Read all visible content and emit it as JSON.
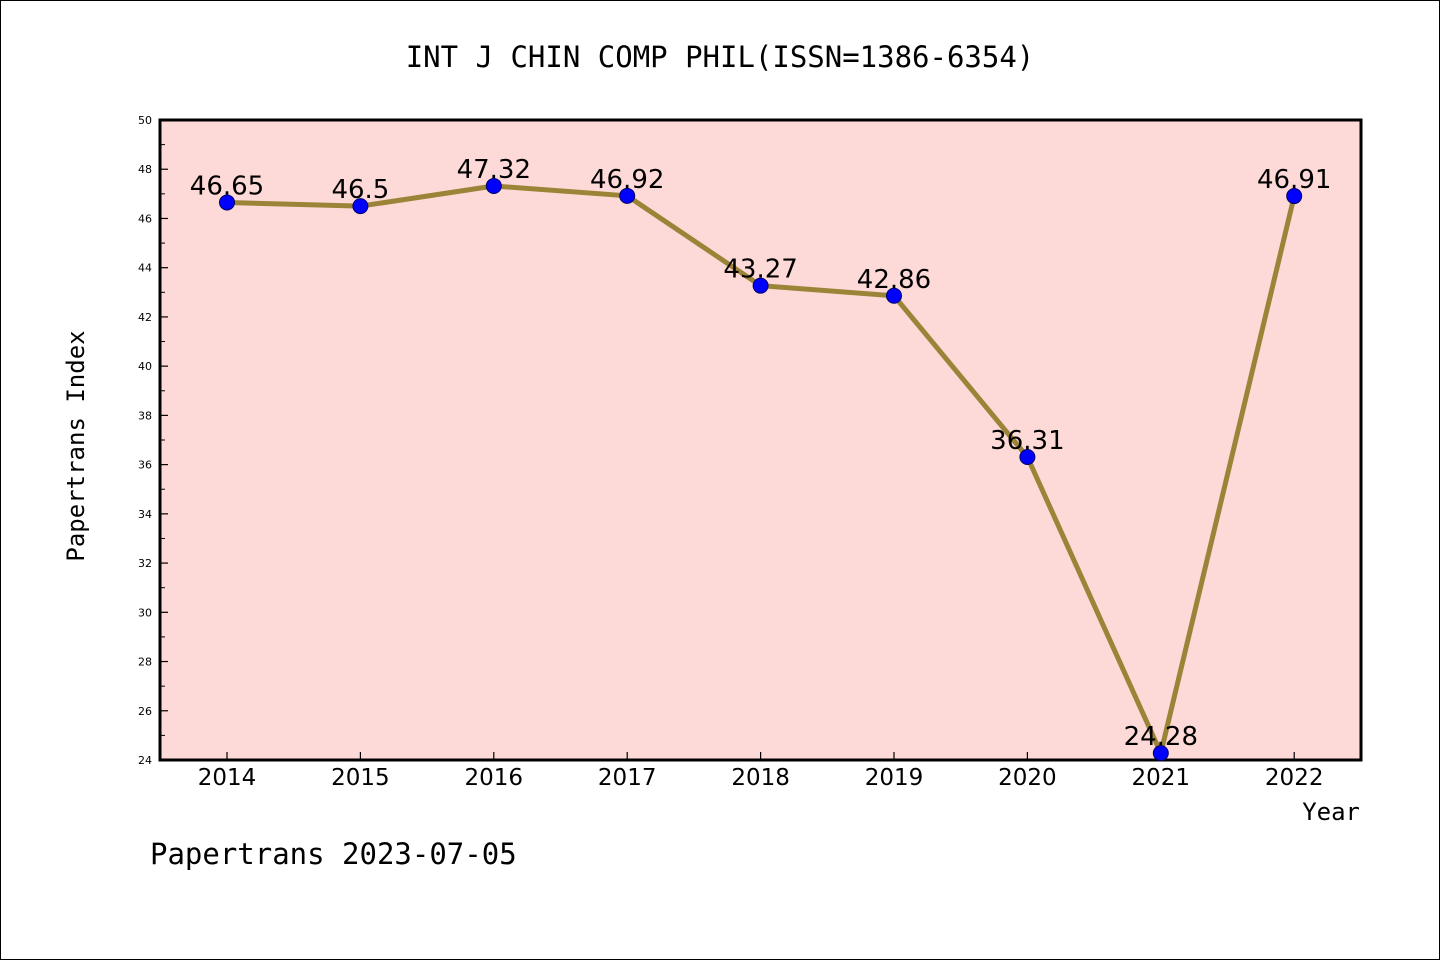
{
  "chart_data": {
    "type": "line",
    "title": "INT J CHIN COMP PHIL(ISSN=1386-6354)",
    "xlabel": "Year",
    "ylabel": "Papertrans Index",
    "categories": [
      "2014",
      "2015",
      "2016",
      "2017",
      "2018",
      "2019",
      "2020",
      "2021",
      "2022"
    ],
    "series": [
      {
        "values": [
          46.65,
          46.5,
          47.32,
          46.92,
          43.27,
          42.86,
          36.31,
          24.28,
          46.91
        ]
      }
    ],
    "data_labels": [
      "46.65",
      "46.5",
      "47.32",
      "46.92",
      "43.27",
      "42.86",
      "36.31",
      "24.28",
      "46.91"
    ],
    "ylim": [
      24,
      50
    ],
    "yticks": [
      "24",
      "26",
      "28",
      "30",
      "32",
      "34",
      "36",
      "38",
      "40",
      "42",
      "44",
      "46",
      "48",
      "50"
    ],
    "grid": false,
    "legend": "none",
    "colors": {
      "plot_background": "#fddad7",
      "line": "#9b8438",
      "marker": "#0000ff",
      "axes": "#000000"
    }
  },
  "footer": "Papertrans 2023-07-05"
}
